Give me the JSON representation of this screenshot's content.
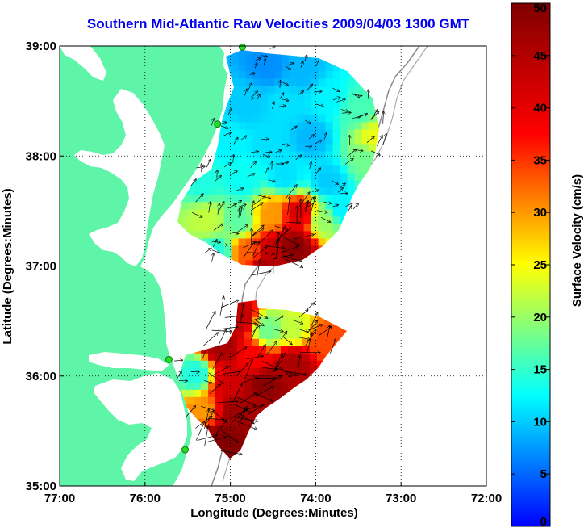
{
  "chart_data": {
    "type": "heatmap",
    "title": "Southern Mid-Atlantic Raw Velocities 2009/04/03 1300 GMT",
    "xlabel": "Longitude (Degrees:Minutes)",
    "ylabel": "Latitude (Degrees:Minutes)",
    "xlim": [
      -77,
      -72
    ],
    "ylim": [
      35,
      39
    ],
    "x_ticks": [
      {
        "value": -77,
        "label": "77:00"
      },
      {
        "value": -76,
        "label": "76:00"
      },
      {
        "value": -75,
        "label": "75:00"
      },
      {
        "value": -74,
        "label": "74:00"
      },
      {
        "value": -73,
        "label": "73:00"
      },
      {
        "value": -72,
        "label": "72:00"
      }
    ],
    "y_ticks": [
      {
        "value": 35,
        "label": "35:00"
      },
      {
        "value": 36,
        "label": "36:00"
      },
      {
        "value": 37,
        "label": "37:00"
      },
      {
        "value": 38,
        "label": "38:00"
      },
      {
        "value": 39,
        "label": "39:00"
      }
    ],
    "grid": "dotted",
    "colorbar": {
      "label": "Surface Velocity (cm/s)",
      "min": 0,
      "max": 50,
      "ticks": [
        0,
        5,
        10,
        15,
        20,
        25,
        30,
        35,
        40,
        45,
        50
      ],
      "colormap": "jet"
    },
    "land_color": "#5ef5a8",
    "stations": [
      {
        "lon": -74.86,
        "lat": 38.99
      },
      {
        "lon": -75.15,
        "lat": 38.29
      },
      {
        "lon": -75.72,
        "lat": 36.15
      },
      {
        "lon": -75.53,
        "lat": 35.33
      }
    ],
    "velocity_regions": [
      {
        "name": "north",
        "points": [
          {
            "lon": -74.6,
            "lat": 38.85,
            "v": 7
          },
          {
            "lon": -74.2,
            "lat": 38.8,
            "v": 9
          },
          {
            "lon": -74.85,
            "lat": 38.5,
            "v": 10
          },
          {
            "lon": -74.4,
            "lat": 38.5,
            "v": 11
          },
          {
            "lon": -73.9,
            "lat": 38.55,
            "v": 12
          },
          {
            "lon": -73.55,
            "lat": 38.45,
            "v": 16
          },
          {
            "lon": -73.35,
            "lat": 38.2,
            "v": 24
          },
          {
            "lon": -73.45,
            "lat": 38.0,
            "v": 18
          },
          {
            "lon": -75.05,
            "lat": 38.15,
            "v": 12
          },
          {
            "lon": -74.6,
            "lat": 38.15,
            "v": 11
          },
          {
            "lon": -74.1,
            "lat": 38.2,
            "v": 9
          },
          {
            "lon": -75.35,
            "lat": 37.8,
            "v": 14
          },
          {
            "lon": -74.9,
            "lat": 37.8,
            "v": 13
          },
          {
            "lon": -74.4,
            "lat": 37.85,
            "v": 11
          },
          {
            "lon": -73.9,
            "lat": 37.8,
            "v": 10
          },
          {
            "lon": -73.75,
            "lat": 37.55,
            "v": 12
          },
          {
            "lon": -75.3,
            "lat": 37.45,
            "v": 22
          },
          {
            "lon": -74.95,
            "lat": 37.45,
            "v": 17
          },
          {
            "lon": -74.55,
            "lat": 37.5,
            "v": 30
          },
          {
            "lon": -74.25,
            "lat": 37.5,
            "v": 41
          },
          {
            "lon": -73.95,
            "lat": 37.45,
            "v": 20
          },
          {
            "lon": -75.2,
            "lat": 37.15,
            "v": 14
          },
          {
            "lon": -74.85,
            "lat": 37.15,
            "v": 33
          },
          {
            "lon": -74.55,
            "lat": 37.15,
            "v": 44
          },
          {
            "lon": -74.3,
            "lat": 37.2,
            "v": 49
          },
          {
            "lon": -74.65,
            "lat": 36.98,
            "v": 47
          }
        ]
      },
      {
        "name": "south",
        "points": [
          {
            "lon": -74.95,
            "lat": 36.55,
            "v": 44
          },
          {
            "lon": -74.6,
            "lat": 36.45,
            "v": 18
          },
          {
            "lon": -74.3,
            "lat": 36.45,
            "v": 22
          },
          {
            "lon": -73.95,
            "lat": 36.35,
            "v": 34
          },
          {
            "lon": -75.15,
            "lat": 36.3,
            "v": 46
          },
          {
            "lon": -74.75,
            "lat": 36.2,
            "v": 38
          },
          {
            "lon": -74.3,
            "lat": 36.15,
            "v": 46
          },
          {
            "lon": -75.45,
            "lat": 36.05,
            "v": 14
          },
          {
            "lon": -75.05,
            "lat": 35.95,
            "v": 42
          },
          {
            "lon": -74.65,
            "lat": 35.95,
            "v": 49
          },
          {
            "lon": -75.35,
            "lat": 35.7,
            "v": 30
          },
          {
            "lon": -75.0,
            "lat": 35.7,
            "v": 47
          },
          {
            "lon": -74.75,
            "lat": 35.75,
            "v": 46
          },
          {
            "lon": -75.1,
            "lat": 35.45,
            "v": 50
          },
          {
            "lon": -75.3,
            "lat": 35.45,
            "v": 48
          }
        ]
      }
    ]
  }
}
